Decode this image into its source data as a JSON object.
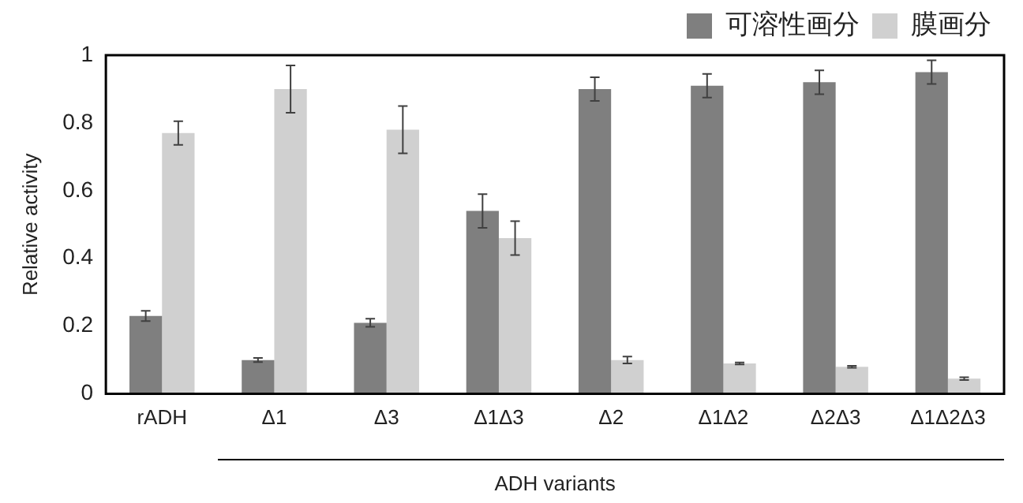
{
  "chart_data": {
    "type": "bar",
    "xlabel": "ADH variants",
    "ylabel": "Relative activity",
    "categories": [
      "rADH",
      "Δ1",
      "Δ3",
      "Δ1Δ3",
      "Δ2",
      "Δ1Δ2",
      "Δ2Δ3",
      "Δ1Δ2Δ3"
    ],
    "series": [
      {
        "name": "可溶性画分",
        "color": "#7f7f7f",
        "values": [
          0.23,
          0.1,
          0.21,
          0.54,
          0.9,
          0.91,
          0.92,
          0.95
        ],
        "errors": [
          0.015,
          0.006,
          0.012,
          0.05,
          0.035,
          0.035,
          0.035,
          0.035
        ]
      },
      {
        "name": "膜画分",
        "color": "#d0d0d0",
        "values": [
          0.77,
          0.9,
          0.78,
          0.46,
          0.1,
          0.09,
          0.08,
          0.045
        ],
        "errors": [
          0.035,
          0.07,
          0.07,
          0.05,
          0.01,
          0.003,
          0.003,
          0.004
        ]
      }
    ],
    "ylim": [
      0,
      1
    ],
    "yticks": [
      0,
      0.2,
      0.4,
      0.6,
      0.8,
      1
    ],
    "grid": false,
    "legend": "top right"
  }
}
